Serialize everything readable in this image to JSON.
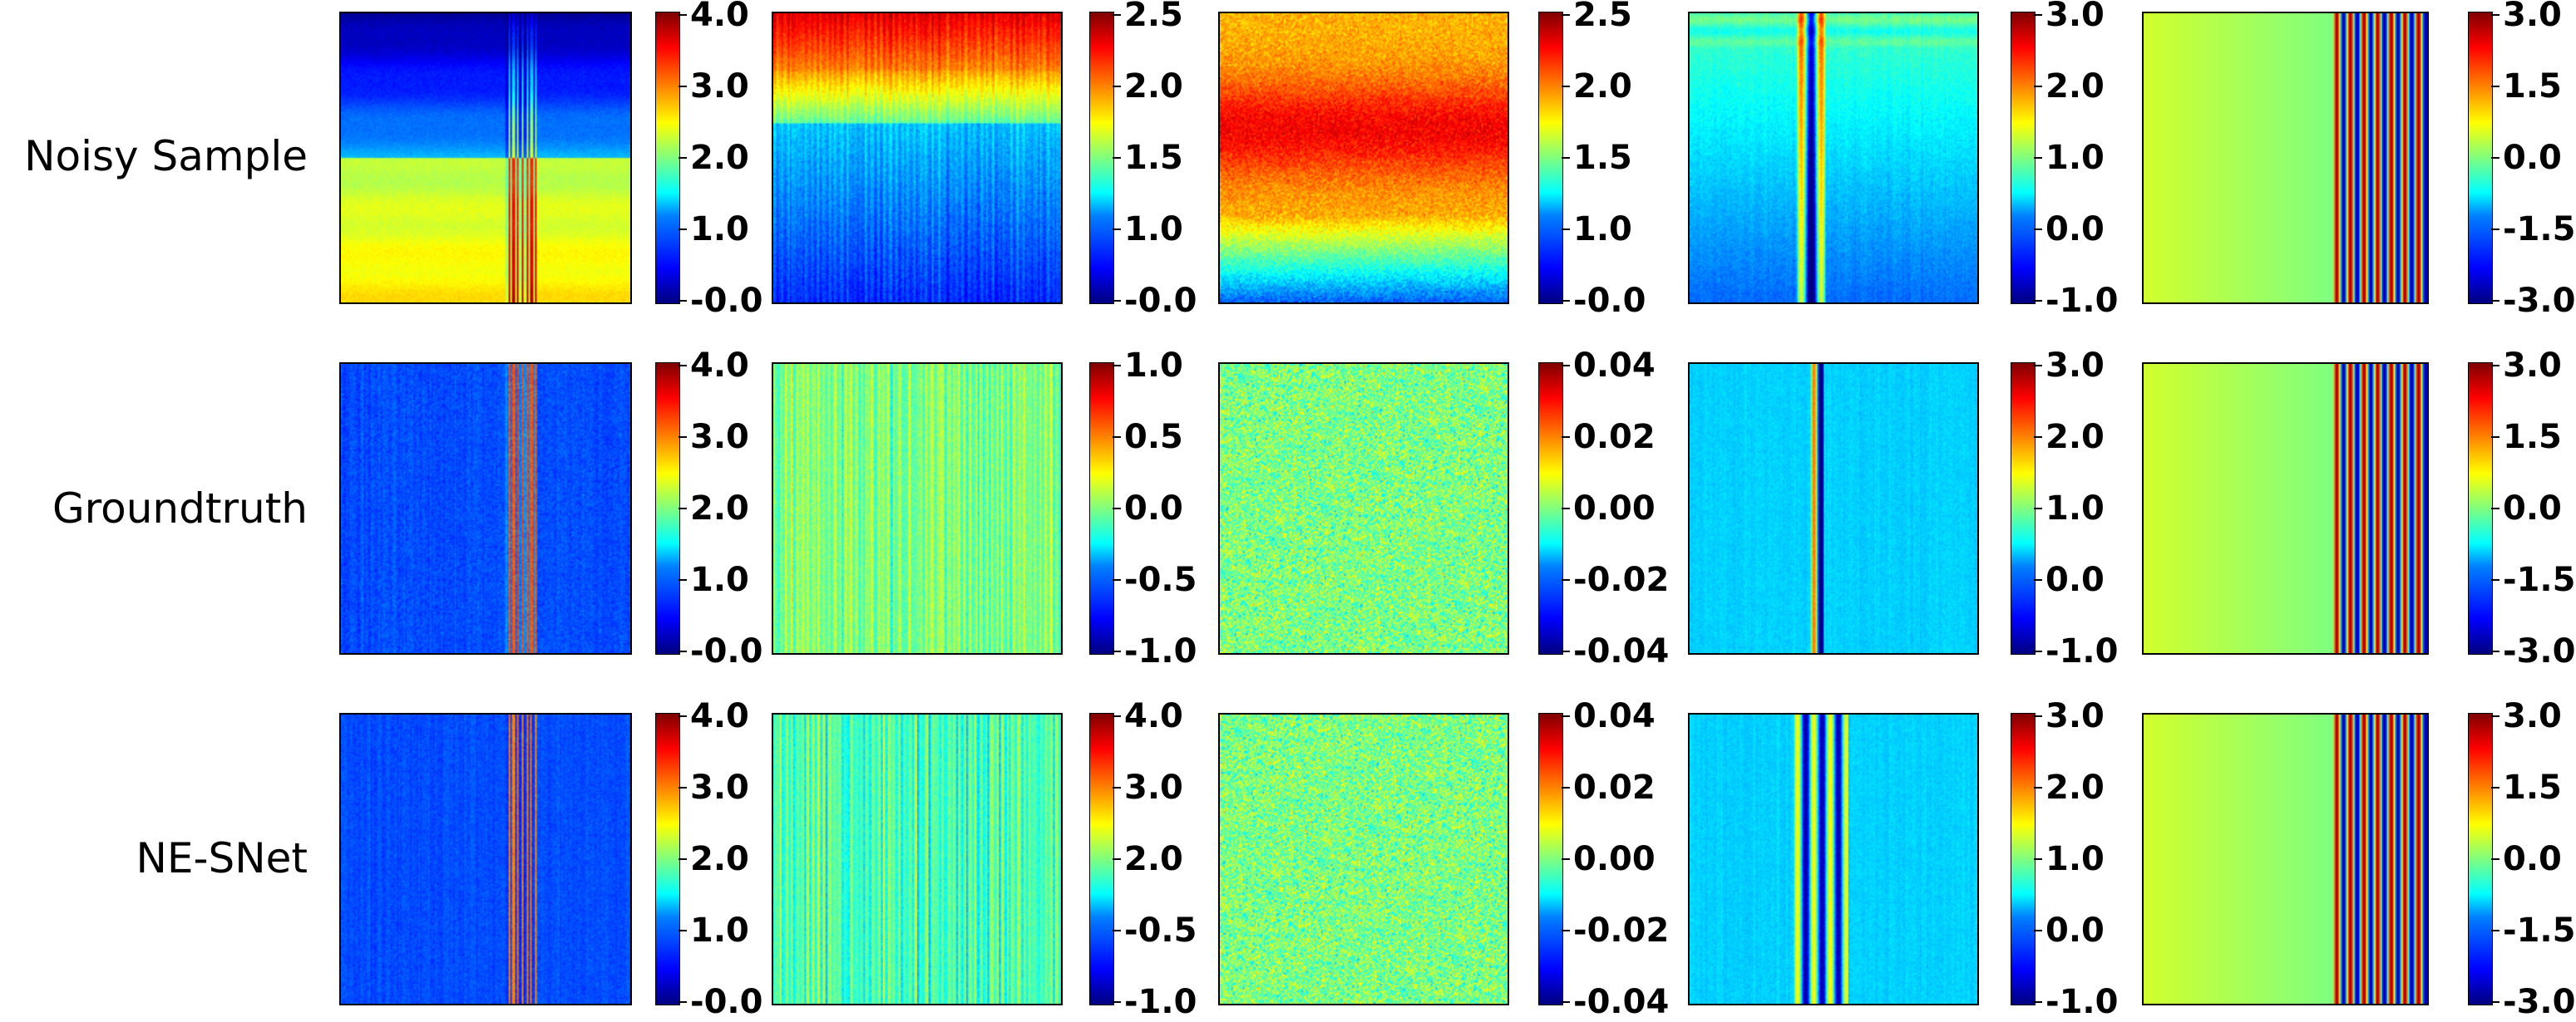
{
  "chart_data": {
    "type": "heatmap",
    "colormap": "jet",
    "rows": [
      "Noisy Sample",
      "Groundtruth",
      "NE-SNet"
    ],
    "panels": [
      [
        {
          "name": "noisy-1",
          "pattern": "noisy1",
          "vmin": 0.0,
          "vmax": 4.0,
          "ticks": [
            "4.0",
            "3.0",
            "2.0",
            "1.0",
            "-0.0"
          ]
        },
        {
          "name": "noisy-2",
          "pattern": "noisy2",
          "vmin": 0.0,
          "vmax": 2.5,
          "ticks": [
            "2.5",
            "2.0",
            "1.5",
            "1.0",
            "-0.0"
          ]
        },
        {
          "name": "noisy-3",
          "pattern": "noisy3",
          "vmin": 0.0,
          "vmax": 2.5,
          "ticks": [
            "2.5",
            "2.0",
            "1.5",
            "1.0",
            "-0.0"
          ]
        },
        {
          "name": "noisy-4",
          "pattern": "noisy4",
          "vmin": -1.0,
          "vmax": 3.0,
          "ticks": [
            "3.0",
            "2.0",
            "1.0",
            "0.0",
            "-1.0"
          ]
        },
        {
          "name": "noisy-5",
          "pattern": "stripes",
          "vmin": -3.0,
          "vmax": 3.0,
          "ticks": [
            "3.0",
            "1.5",
            "0.0",
            "-1.5",
            "-3.0"
          ]
        }
      ],
      [
        {
          "name": "gt-1",
          "pattern": "gt1",
          "vmin": 0.0,
          "vmax": 4.0,
          "ticks": [
            "4.0",
            "3.0",
            "2.0",
            "1.0",
            "-0.0"
          ]
        },
        {
          "name": "gt-2",
          "pattern": "gt2",
          "vmin": -1.0,
          "vmax": 1.0,
          "ticks": [
            "1.0",
            "0.5",
            "0.0",
            "-0.5",
            "-1.0"
          ]
        },
        {
          "name": "gt-3",
          "pattern": "gt3",
          "vmin": -0.04,
          "vmax": 0.04,
          "ticks": [
            "0.04",
            "0.02",
            "0.00",
            "-0.02",
            "-0.04"
          ]
        },
        {
          "name": "gt-4",
          "pattern": "gt4",
          "vmin": -1.0,
          "vmax": 3.0,
          "ticks": [
            "3.0",
            "2.0",
            "1.0",
            "0.0",
            "-1.0"
          ]
        },
        {
          "name": "gt-5",
          "pattern": "stripes",
          "vmin": -3.0,
          "vmax": 3.0,
          "ticks": [
            "3.0",
            "1.5",
            "0.0",
            "-1.5",
            "-3.0"
          ]
        }
      ],
      [
        {
          "name": "ne-1",
          "pattern": "ne1",
          "vmin": 0.0,
          "vmax": 4.0,
          "ticks": [
            "4.0",
            "3.0",
            "2.0",
            "1.0",
            "-0.0"
          ]
        },
        {
          "name": "ne-2",
          "pattern": "ne2",
          "vmin": -1.0,
          "vmax": 4.0,
          "ticks": [
            "4.0",
            "3.0",
            "2.0",
            "-0.5",
            "-1.0"
          ]
        },
        {
          "name": "ne-3",
          "pattern": "gt3",
          "vmin": -0.04,
          "vmax": 0.04,
          "ticks": [
            "0.04",
            "0.02",
            "0.00",
            "-0.02",
            "-0.04"
          ]
        },
        {
          "name": "ne-4",
          "pattern": "ne4",
          "vmin": -1.0,
          "vmax": 3.0,
          "ticks": [
            "3.0",
            "2.0",
            "1.0",
            "0.0",
            "-1.0"
          ]
        },
        {
          "name": "ne-5",
          "pattern": "stripes",
          "vmin": -3.0,
          "vmax": 3.0,
          "ticks": [
            "3.0",
            "1.5",
            "0.0",
            "-1.5",
            "-3.0"
          ]
        }
      ]
    ]
  }
}
